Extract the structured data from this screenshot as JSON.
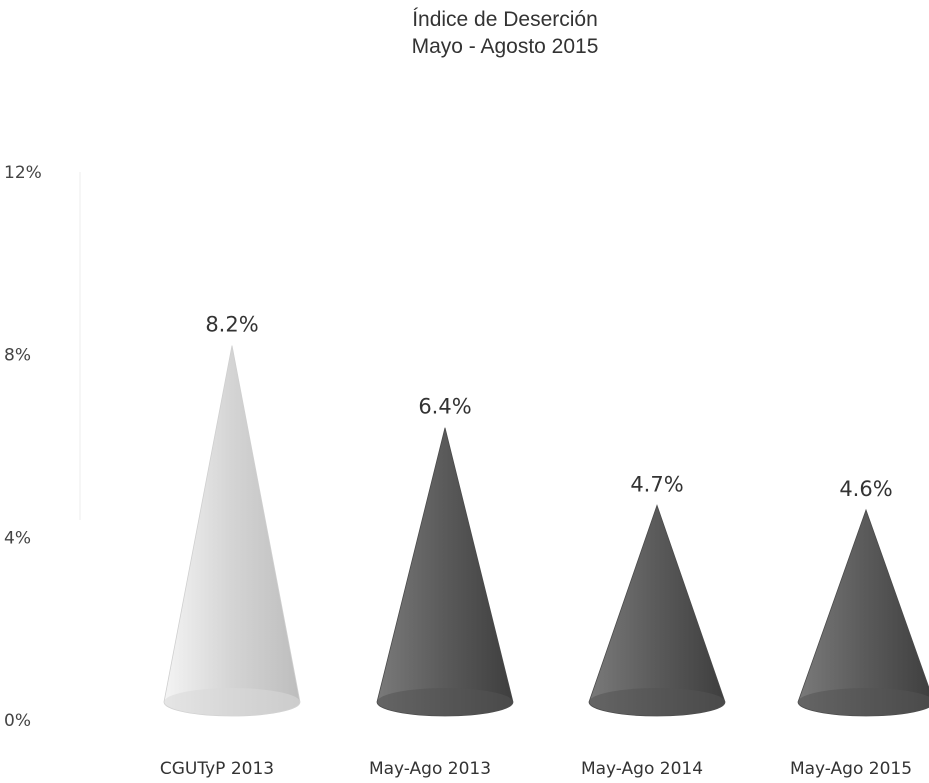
{
  "chart_data": {
    "type": "bar",
    "shape": "cone",
    "title": "Índice de Deserción",
    "subtitle": "Mayo - Agosto 2015",
    "categories": [
      "CGUTyP 2013",
      "May-Ago 2013",
      "May-Ago 2014",
      "May-Ago 2015"
    ],
    "values": [
      8.2,
      6.4,
      4.7,
      4.6
    ],
    "data_labels": [
      "8.2%",
      "6.4%",
      "4.7%",
      "4.6%"
    ],
    "yticks": [
      {
        "value": 0,
        "label": "0%"
      },
      {
        "value": 4,
        "label": "4%"
      },
      {
        "value": 8,
        "label": "8%"
      },
      {
        "value": 12,
        "label": "12%"
      }
    ],
    "ylim": [
      0,
      12
    ],
    "xlabel": "",
    "ylabel": "",
    "grid": false,
    "colors": {
      "first": "#e3e3e3",
      "rest": "#5e5e5e"
    }
  }
}
